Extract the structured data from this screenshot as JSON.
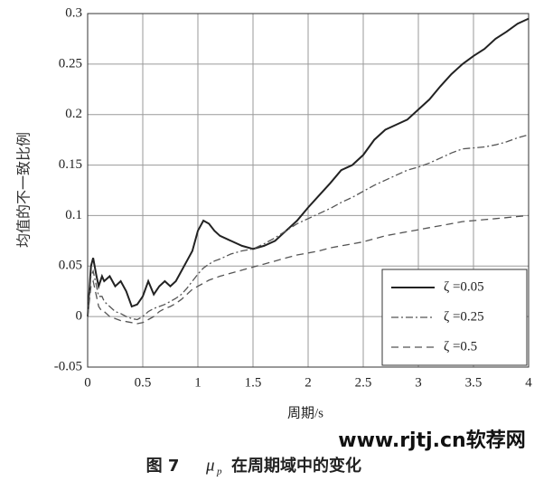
{
  "chart_data": {
    "type": "line",
    "x_label": "周期/s",
    "y_label": "均值的不一致比例",
    "x": [
      0,
      0.03,
      0.05,
      0.08,
      0.1,
      0.13,
      0.15,
      0.2,
      0.25,
      0.3,
      0.35,
      0.4,
      0.45,
      0.5,
      0.55,
      0.6,
      0.65,
      0.7,
      0.75,
      0.8,
      0.85,
      0.9,
      0.95,
      1.0,
      1.05,
      1.1,
      1.15,
      1.2,
      1.3,
      1.4,
      1.5,
      1.6,
      1.7,
      1.8,
      1.9,
      2.0,
      2.1,
      2.2,
      2.3,
      2.4,
      2.5,
      2.6,
      2.7,
      2.8,
      2.9,
      3.0,
      3.1,
      3.2,
      3.3,
      3.4,
      3.5,
      3.6,
      3.7,
      3.8,
      3.9,
      4.0
    ],
    "series": [
      {
        "name": "ζ =0.05",
        "color": "#222222",
        "linestyle": "solid",
        "values": [
          0,
          0.05,
          0.058,
          0.04,
          0.03,
          0.04,
          0.035,
          0.04,
          0.03,
          0.035,
          0.025,
          0.01,
          0.012,
          0.02,
          0.035,
          0.022,
          0.03,
          0.035,
          0.03,
          0.035,
          0.045,
          0.055,
          0.065,
          0.085,
          0.095,
          0.092,
          0.085,
          0.08,
          0.075,
          0.07,
          0.067,
          0.07,
          0.075,
          0.085,
          0.095,
          0.108,
          0.12,
          0.132,
          0.145,
          0.15,
          0.16,
          0.175,
          0.185,
          0.19,
          0.195,
          0.205,
          0.215,
          0.228,
          0.24,
          0.25,
          0.258,
          0.265,
          0.275,
          0.282,
          0.29,
          0.295
        ]
      },
      {
        "name": "ζ =0.25",
        "color": "#555555",
        "linestyle": "dashdot",
        "values": [
          0,
          0.04,
          0.045,
          0.03,
          0.02,
          0.02,
          0.015,
          0.01,
          0.005,
          0.003,
          0.0,
          -0.002,
          -0.003,
          0.0,
          0.005,
          0.008,
          0.01,
          0.012,
          0.015,
          0.018,
          0.022,
          0.028,
          0.035,
          0.042,
          0.048,
          0.052,
          0.055,
          0.057,
          0.062,
          0.065,
          0.067,
          0.072,
          0.078,
          0.085,
          0.092,
          0.097,
          0.102,
          0.107,
          0.113,
          0.118,
          0.124,
          0.13,
          0.135,
          0.14,
          0.145,
          0.148,
          0.152,
          0.157,
          0.162,
          0.166,
          0.167,
          0.168,
          0.17,
          0.173,
          0.177,
          0.18
        ]
      },
      {
        "name": "ζ =0.5",
        "color": "#555555",
        "linestyle": "dashed",
        "values": [
          0,
          0.03,
          0.035,
          0.02,
          0.01,
          0.005,
          0.005,
          0.0,
          -0.002,
          -0.004,
          -0.005,
          -0.006,
          -0.007,
          -0.006,
          -0.003,
          0.0,
          0.005,
          0.008,
          0.01,
          0.013,
          0.017,
          0.022,
          0.027,
          0.03,
          0.033,
          0.036,
          0.038,
          0.04,
          0.043,
          0.046,
          0.049,
          0.052,
          0.055,
          0.058,
          0.061,
          0.063,
          0.065,
          0.068,
          0.07,
          0.072,
          0.074,
          0.077,
          0.08,
          0.082,
          0.084,
          0.086,
          0.088,
          0.09,
          0.092,
          0.094,
          0.095,
          0.096,
          0.097,
          0.098,
          0.099,
          0.1
        ]
      }
    ],
    "xlim": [
      0,
      4
    ],
    "xticks": [
      0,
      0.5,
      1,
      1.5,
      2,
      2.5,
      3,
      3.5,
      4
    ],
    "ylim": [
      -0.05,
      0.3
    ],
    "yticks": [
      -0.05,
      0,
      0.05,
      0.1,
      0.15,
      0.2,
      0.25,
      0.3
    ],
    "grid": true,
    "legend": "lower right",
    "figure_label": "图 7",
    "symbol": "μ",
    "symbol_sub": "p",
    "caption": "在周期域中的变化",
    "watermark": "www.rjtj.cn软荐网"
  }
}
